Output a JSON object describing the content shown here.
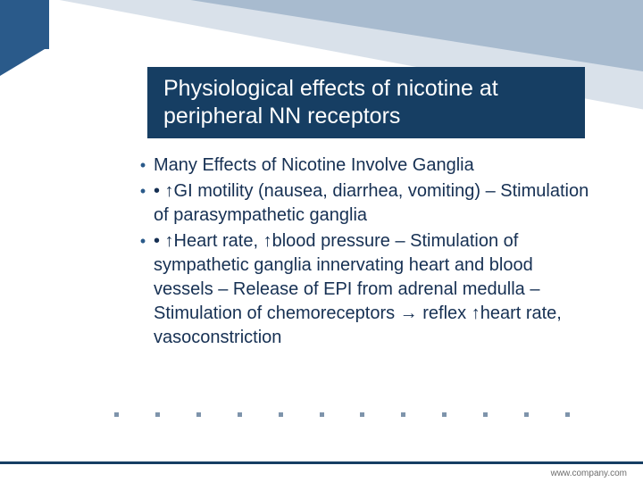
{
  "colors": {
    "brand_dark": "#163e63",
    "brand_mid": "#2a5a8a",
    "triangle_tint": "#2a5a8a",
    "body_text": "#163053",
    "bullet_mark": "#2a5a8a",
    "dot": "#7e94ab",
    "footer_text": "#6d6d6d",
    "white": "#ffffff"
  },
  "title": "Physiological effects of nicotine at peripheral NN receptors",
  "title_fontsize": 25,
  "bullets": [
    "Many Effects of Nicotine Involve Ganglia",
    " • ↑GI motility (nausea, diarrhea, vomiting) – Stimulation of parasympathetic ganglia",
    " • ↑Heart rate, ↑blood pressure – Stimulation of sympathetic ganglia innervating heart and blood vessels – Release of EPI from adrenal medulla – Stimulation of chemoreceptors → reflex ↑heart rate, vasoconstriction"
  ],
  "body_fontsize": 20,
  "dot_count": 12,
  "footer": "www.company.com"
}
